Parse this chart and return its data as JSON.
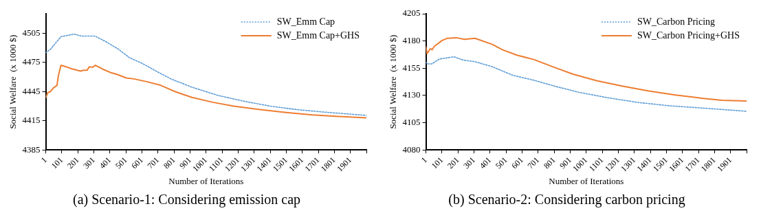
{
  "chart_data": [
    {
      "type": "line",
      "title": "(a) Scenario-1: Considering emission cap",
      "xlabel": "Number of Iterations",
      "ylabel": "Social Welfare  (x 1000 $)",
      "xlim": [
        1,
        2001
      ],
      "xticks": [
        1,
        101,
        201,
        301,
        401,
        501,
        601,
        701,
        801,
        901,
        1001,
        1101,
        1201,
        1301,
        1401,
        1501,
        1601,
        1701,
        1801,
        1901,
        {
          "value": 2001,
          "label": null
        }
      ],
      "ylim": [
        4385,
        4525
      ],
      "yticks": [
        4385,
        4415,
        4445,
        4475,
        4505
      ],
      "grid": false,
      "legend": "top right",
      "marker": "none",
      "series": [
        {
          "name": "SW_Emm Cap",
          "color": "#5b9bd5",
          "line_style": "dotted",
          "x": [
            1,
            30,
            96,
            177,
            226,
            308,
            374,
            455,
            521,
            602,
            684,
            782,
            913,
            1076,
            1240,
            1403,
            1566,
            1730,
            2001
          ],
          "values": [
            4485,
            4488.5,
            4501.5,
            4504,
            4502,
            4502,
            4496.5,
            4488.5,
            4480,
            4474,
            4466.5,
            4458,
            4449.5,
            4441,
            4435,
            4430,
            4426.5,
            4424,
            4420.5
          ]
        },
        {
          "name": "SW_Emm Cap+GHS",
          "color": "#ed7d31",
          "line_style": "solid",
          "x": [
            1,
            14,
            30,
            47,
            71,
            79,
            96,
            128,
            161,
            218,
            235,
            259,
            272,
            292,
            311,
            357,
            406,
            439,
            504,
            553,
            635,
            717,
            815,
            913,
            1043,
            1174,
            1338,
            1501,
            1665,
            1828,
            2001
          ],
          "values": [
            4439,
            4444,
            4445,
            4448.5,
            4451.5,
            4461,
            4472,
            4470.5,
            4468.5,
            4466,
            4467,
            4467,
            4470.5,
            4470,
            4472,
            4468,
            4464.5,
            4463,
            4459,
            4458,
            4455,
            4451.5,
            4444.5,
            4439,
            4434,
            4430,
            4426.5,
            4423.5,
            4421,
            4419.5,
            4418
          ]
        }
      ]
    },
    {
      "type": "line",
      "title": "(b) Scenario-2: Considering carbon pricing",
      "xlabel": "Number of Iterations",
      "ylabel": "Social Welfare  (x 1000 $)",
      "xlim": [
        1,
        2001
      ],
      "xticks": [
        1,
        101,
        201,
        301,
        401,
        501,
        601,
        701,
        801,
        901,
        1001,
        1101,
        1201,
        1301,
        1401,
        1501,
        1601,
        1701,
        1801,
        1901,
        {
          "value": 2001,
          "label": null
        }
      ],
      "ylim": [
        4080,
        4205
      ],
      "yticks": [
        4080,
        4105,
        4130,
        4155,
        4180,
        4205
      ],
      "grid": false,
      "legend": "top right",
      "marker": "none",
      "series": [
        {
          "name": "SW_Carbon Pricing",
          "color": "#5b9bd5",
          "line_style": "dotted",
          "x": [
            1,
            12,
            37,
            86,
            176,
            233,
            307,
            413,
            543,
            674,
            805,
            952,
            1132,
            1328,
            1524,
            1720,
            2001
          ],
          "values": [
            4160.5,
            4159,
            4159,
            4163.5,
            4165.5,
            4162.5,
            4161,
            4156.5,
            4148.5,
            4144,
            4138.5,
            4133,
            4128,
            4123.5,
            4120.5,
            4118.5,
            4115.5
          ]
        },
        {
          "name": "SW_Carbon Pricing+GHS",
          "color": "#ed7d31",
          "line_style": "solid",
          "x": [
            1,
            8,
            29,
            40,
            53,
            102,
            135,
            192,
            241,
            307,
            413,
            478,
            568,
            674,
            789,
            919,
            1067,
            1230,
            1393,
            1557,
            1720,
            1851,
            2001
          ],
          "values": [
            4174.5,
            4168.5,
            4173,
            4172,
            4175,
            4180.5,
            4182.5,
            4183,
            4181.5,
            4182.5,
            4177,
            4172,
            4167,
            4163,
            4156.5,
            4149.5,
            4143.5,
            4138.5,
            4134,
            4130.5,
            4127.5,
            4125.5,
            4125
          ]
        }
      ]
    }
  ]
}
